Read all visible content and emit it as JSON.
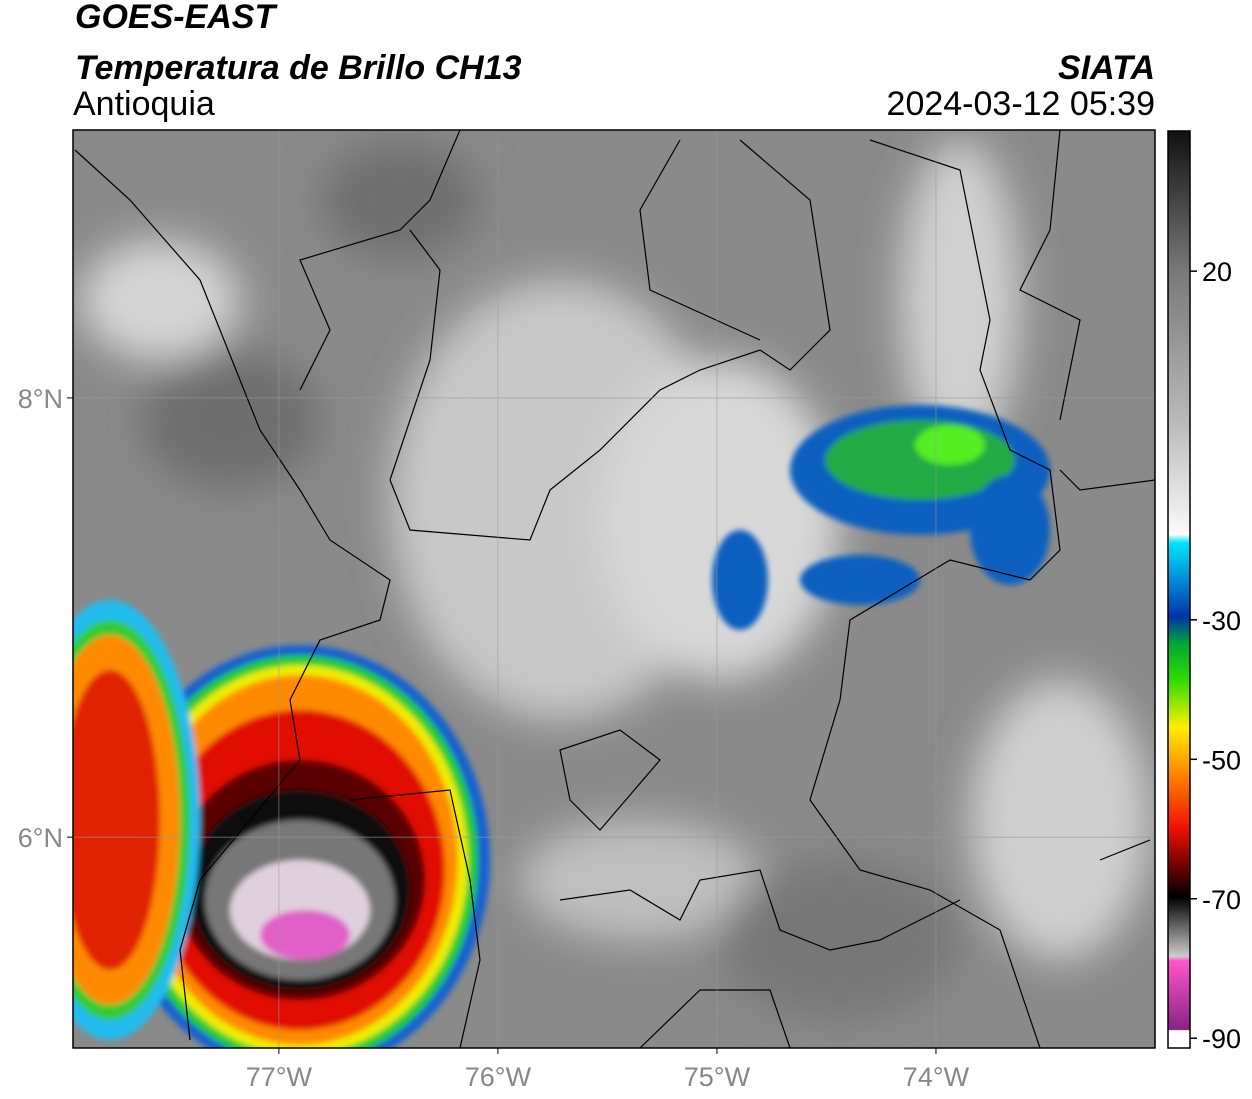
{
  "header": {
    "title": "GOES-EAST",
    "subtitle": "Temperatura de Brillo CH13",
    "region": "Antioquia",
    "source": "SIATA",
    "datetime": "2024-03-12 05:39"
  },
  "map": {
    "lonlim": [
      -77.94,
      -73.0
    ],
    "latlim": [
      5.04,
      9.22
    ],
    "lon_ticks": [
      {
        "value": -77,
        "label": "77°W"
      },
      {
        "value": -76,
        "label": "76°W"
      },
      {
        "value": -75,
        "label": "75°W"
      },
      {
        "value": -74,
        "label": "74°W"
      }
    ],
    "lat_ticks": [
      {
        "value": 8,
        "label": "8°N"
      },
      {
        "value": 6,
        "label": "6°N"
      }
    ]
  },
  "colorbar": {
    "lim": [
      -91.4,
      40.1
    ],
    "ticks": [
      20,
      -30,
      -50,
      -70,
      -90
    ]
  }
}
